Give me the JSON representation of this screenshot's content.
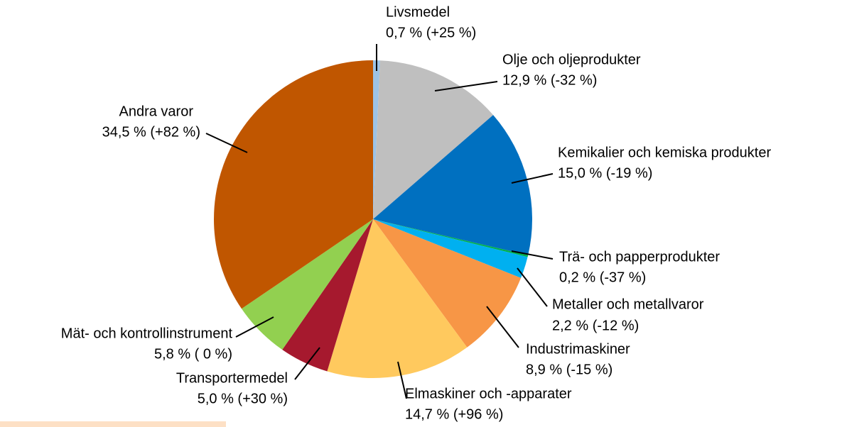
{
  "chart_data": {
    "type": "pie",
    "categories": [
      "Livsmedel",
      "Olje och oljeprodukter",
      "Kemikalier och kemiska produkter",
      "Trä- och papperprodukter",
      "Metaller och metallvaror",
      "Industrimaskiner",
      "Elmaskiner och -apparater",
      "Transportermedel",
      "Mät- och kontrollinstrument",
      "Andra varor"
    ],
    "values": [
      0.7,
      12.9,
      15.0,
      0.2,
      2.2,
      8.9,
      14.7,
      5.0,
      5.8,
      34.5
    ],
    "value_labels": [
      "0,7 % (+25 %)",
      "12,9 % (-32 %)",
      "15,0 % (-19 %)",
      "0,2 % (-37 %)",
      "2,2 % (-12 %)",
      "8,9 % (-15 %)",
      "14,7 % (+96 %)",
      "5,0 % (+30 %)",
      "5,8 % ( 0 %)",
      "34,5 % (+82 %)"
    ],
    "colors": [
      "#9dc3e6",
      "#bfbfbf",
      "#0070c0",
      "#00b050",
      "#00b0f0",
      "#f79646",
      "#ffc95e",
      "#a6192e",
      "#92d050",
      "#c05600"
    ]
  }
}
